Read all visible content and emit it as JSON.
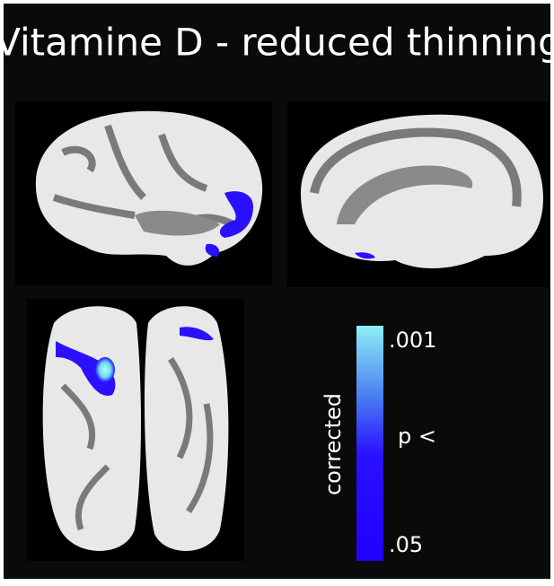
{
  "header": {
    "title": "Vitamine D - reduced thinning"
  },
  "colorbar": {
    "top_label": ".001",
    "middle_label": "p <",
    "bottom_label": ".05",
    "axis_label": "corrected"
  }
}
